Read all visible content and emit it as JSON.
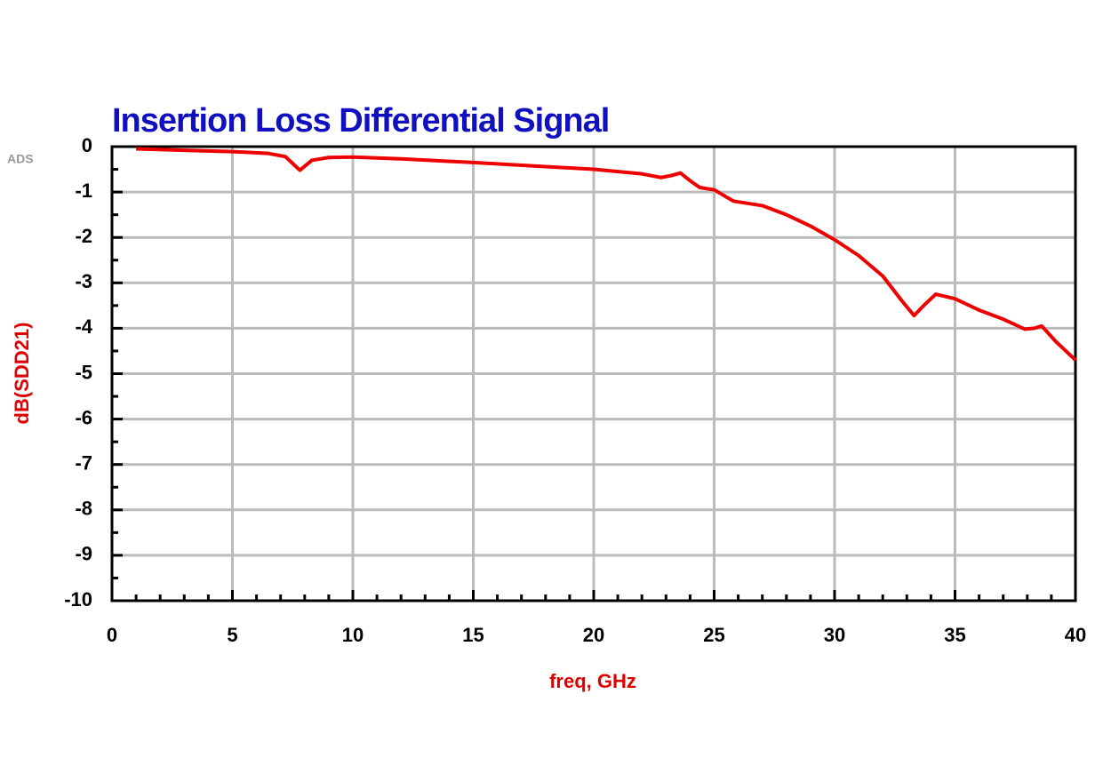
{
  "chart_data": {
    "type": "line",
    "title": "Insertion Loss Differential Signal",
    "annotations": [
      "ADS"
    ],
    "x_label": "freq, GHz",
    "y_label": "dB(SDD21)",
    "color": "#ee0000",
    "grid": true,
    "x": [
      1,
      3,
      5,
      6.5,
      7.2,
      7.8,
      8.3,
      9,
      10,
      12,
      15,
      18,
      20,
      22,
      22.8,
      23.2,
      23.6,
      24,
      24.4,
      25,
      25.8,
      27,
      28,
      29,
      30,
      31,
      32,
      32.8,
      33.3,
      33.7,
      34.2,
      35,
      36,
      37,
      37.9,
      38.3,
      38.6,
      39.2,
      40
    ],
    "values": [
      -0.05,
      -0.08,
      -0.11,
      -0.15,
      -0.22,
      -0.52,
      -0.3,
      -0.24,
      -0.23,
      -0.27,
      -0.35,
      -0.44,
      -0.5,
      -0.6,
      -0.68,
      -0.64,
      -0.58,
      -0.75,
      -0.9,
      -0.95,
      -1.2,
      -1.3,
      -1.5,
      -1.75,
      -2.05,
      -2.4,
      -2.85,
      -3.4,
      -3.72,
      -3.5,
      -3.25,
      -3.35,
      -3.6,
      -3.8,
      -4.02,
      -4.0,
      -3.95,
      -4.3,
      -4.7
    ],
    "xlim": [
      0,
      40
    ],
    "xticks": [
      0,
      5,
      10,
      15,
      20,
      25,
      30,
      35,
      40
    ],
    "ylim": [
      -10,
      0
    ],
    "yticks": [
      0,
      -1,
      -2,
      -3,
      -4,
      -5,
      -6,
      -7,
      -8,
      -9,
      -10
    ]
  }
}
